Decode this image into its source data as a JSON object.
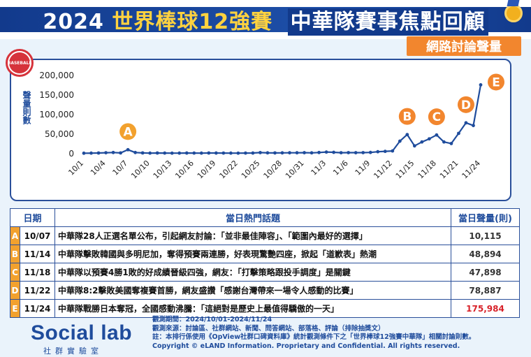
{
  "header": {
    "year": "2024",
    "event": "世界棒球12強賽",
    "title": "中華隊賽事焦點回顧",
    "subtitle": "網路討論聲量"
  },
  "badge_text": "BASEBALL",
  "chart_data": {
    "type": "line",
    "title": "",
    "xlabel": "",
    "ylabel": "聲量則數",
    "ylim": [
      0,
      200000
    ],
    "yticks": [
      "0",
      "50,000",
      "100,000",
      "150,000",
      "200,000"
    ],
    "ytick_values": [
      0,
      50000,
      100000,
      150000,
      200000
    ],
    "x": [
      "10/1",
      "10/2",
      "10/3",
      "10/4",
      "10/5",
      "10/6",
      "10/7",
      "10/8",
      "10/9",
      "10/10",
      "10/11",
      "10/12",
      "10/13",
      "10/14",
      "10/15",
      "10/16",
      "10/17",
      "10/18",
      "10/19",
      "10/20",
      "10/21",
      "10/22",
      "10/23",
      "10/24",
      "10/25",
      "10/26",
      "10/27",
      "10/28",
      "10/29",
      "10/30",
      "10/31",
      "11/1",
      "11/2",
      "11/3",
      "11/4",
      "11/5",
      "11/6",
      "11/7",
      "11/8",
      "11/9",
      "11/10",
      "11/11",
      "11/12",
      "11/13",
      "11/14",
      "11/15",
      "11/16",
      "11/17",
      "11/18",
      "11/19",
      "11/20",
      "11/21",
      "11/22",
      "11/23",
      "11/24"
    ],
    "xtick_labels": [
      "10/1",
      "10/4",
      "10/7",
      "10/10",
      "10/13",
      "10/16",
      "10/19",
      "10/22",
      "10/25",
      "10/28",
      "10/31",
      "11/3",
      "11/6",
      "11/9",
      "11/12",
      "11/15",
      "11/18",
      "11/21",
      "11/24"
    ],
    "series": [
      {
        "values": [
          1200,
          1500,
          1800,
          2500,
          3000,
          2000,
          10115,
          3000,
          2000,
          1500,
          1800,
          1600,
          1400,
          1500,
          1700,
          1600,
          1500,
          1800,
          1700,
          1600,
          1500,
          1400,
          1600,
          1700,
          2800,
          2200,
          2000,
          2100,
          2300,
          2400,
          2600,
          2200,
          3000,
          4200,
          3500,
          2500,
          2700,
          2600,
          2700,
          3200,
          5000,
          6000,
          7000,
          32000,
          48894,
          20000,
          30000,
          38000,
          47898,
          30000,
          26000,
          52000,
          78887,
          72000,
          175984
        ],
        "color": "#1f4c9c"
      }
    ],
    "annotations": [
      {
        "label": "A",
        "x": "10/7",
        "y": 10115,
        "color": "#f2a12e"
      },
      {
        "label": "B",
        "x": "11/14",
        "y": 48894,
        "color": "#f2862e"
      },
      {
        "label": "C",
        "x": "11/18",
        "y": 47898,
        "color": "#f2862e"
      },
      {
        "label": "D",
        "x": "11/22",
        "y": 78887,
        "color": "#f2862e"
      },
      {
        "label": "E",
        "x": "11/24",
        "y": 175984,
        "color": "#f2862e"
      }
    ]
  },
  "table": {
    "headers": {
      "date": "日期",
      "topic": "當日熱門話題",
      "volume": "當日聲量(則)"
    },
    "rows": [
      {
        "key": "A",
        "date": "10/07",
        "topic": "中華隊28人正選名單公布，引起網友討論：「並非最佳陣容」、「範圍內最好的選擇」",
        "volume": "10,115",
        "color": "#f2a12e"
      },
      {
        "key": "B",
        "date": "11/14",
        "topic": "中華隊擊敗韓國與多明尼加，奪得預賽兩連勝，好表現驚艷四座，掀起「道歉表」熱潮",
        "volume": "48,894",
        "color": "#f2a12e"
      },
      {
        "key": "C",
        "date": "11/18",
        "topic": "中華隊以預賽4勝1敗的好成績晉級四強，網友：「打擊策略跟投手調度」是關鍵",
        "volume": "47,898",
        "color": "#f2a12e"
      },
      {
        "key": "D",
        "date": "11/22",
        "topic": "中華隊8:2擊敗美國奪複賽首勝，網友盛讚「感謝台灣帶來一場令人感動的比賽」",
        "volume": "78,887",
        "color": "#f2a12e"
      },
      {
        "key": "E",
        "date": "11/24",
        "topic": "中華隊戰勝日本奪冠，全國感動沸騰：「這絕對是歷史上最值得驕傲的一天」",
        "volume": "175,984",
        "color": "#f2a12e"
      }
    ]
  },
  "footer": {
    "logo": "Social lab",
    "logo_sub": "社群實驗室",
    "notes": [
      "觀測期間：2024/10/01-2024/11/24",
      "觀測來源：討論區、社群網站、新聞、問答網站、部落格、評論（排除抽獎文）",
      "註：本排行係使用《OpView社群口碑資料庫》統計觀測條件下之「世界棒球12強賽中華隊」相關討論則數。",
      "Copyright © eLAND Information. Proprietary and Confidential. All rights reserved."
    ]
  }
}
